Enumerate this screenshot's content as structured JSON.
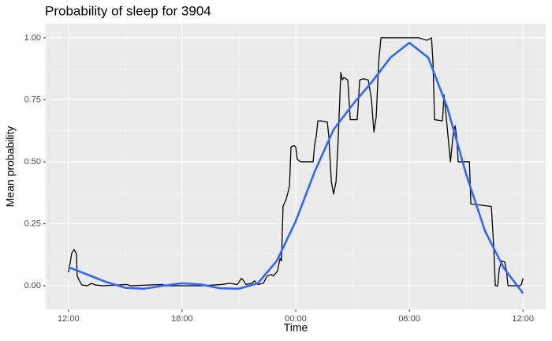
{
  "chart_data": {
    "type": "line",
    "title": "Probability of sleep for 3904",
    "x_label": "Time",
    "y_label": "Mean probability",
    "xlim": [
      -1.2,
      25.2
    ],
    "ylim": [
      -0.0955,
      1.057
    ],
    "xticks": [
      {
        "value": 0,
        "label": "12:00"
      },
      {
        "value": 6,
        "label": "18:00"
      },
      {
        "value": 12,
        "label": "00:00"
      },
      {
        "value": 18,
        "label": "06:00"
      },
      {
        "value": 24,
        "label": "12:00"
      }
    ],
    "yticks": [
      {
        "value": 0,
        "label": "0.00"
      },
      {
        "value": 0.25,
        "label": "0.25"
      },
      {
        "value": 0.5,
        "label": "0.50"
      },
      {
        "value": 0.75,
        "label": "0.75"
      },
      {
        "value": 1,
        "label": "1.00"
      }
    ],
    "x_minor": [
      3,
      9,
      15,
      21
    ],
    "y_minor": [
      0.125,
      0.375,
      0.625,
      0.875
    ],
    "grid": true,
    "series": [
      {
        "color": "#000000",
        "width": 1.3,
        "x": [
          0,
          0.04,
          0.17,
          0.29,
          0.42,
          0.46,
          0.58,
          0.71,
          1.0,
          1.21,
          1.42,
          1.83,
          3.08,
          3.29,
          4.96,
          5.17,
          7.04,
          8.08,
          8.5,
          8.92,
          9.13,
          9.25,
          9.38,
          9.67,
          9.83,
          10.0,
          10.29,
          10.5,
          10.71,
          10.83,
          11.04,
          11.17,
          11.25,
          11.33,
          11.5,
          11.67,
          11.75,
          11.92,
          12.0,
          12.08,
          12.25,
          12.92,
          13.0,
          13.08,
          13.17,
          13.33,
          13.67,
          13.75,
          13.88,
          14.0,
          14.13,
          14.25,
          14.38,
          14.46,
          14.54,
          14.75,
          14.88,
          15.25,
          15.38,
          15.58,
          15.83,
          16.0,
          16.13,
          16.25,
          16.38,
          16.5,
          18.5,
          18.92,
          19.17,
          19.25,
          19.33,
          19.75,
          19.83,
          19.96,
          20.17,
          20.33,
          20.42,
          20.5,
          20.58,
          21.17,
          21.25,
          22.33,
          22.46,
          22.54,
          22.67,
          22.75,
          22.88,
          23.04,
          23.13,
          23.21,
          23.83,
          23.92,
          24.0
        ],
        "values": [
          0.054,
          0.07,
          0.13,
          0.146,
          0.13,
          0.04,
          0.02,
          0.003,
          0,
          0.01,
          0.003,
          0,
          0.005,
          0,
          0.005,
          0,
          0,
          0.005,
          0.01,
          0.005,
          0.03,
          0.02,
          0.005,
          0.01,
          0.02,
          0.005,
          0.01,
          0.04,
          0.045,
          0.04,
          0.06,
          0.11,
          0.1,
          0.32,
          0.35,
          0.4,
          0.56,
          0.565,
          0.56,
          0.51,
          0.5,
          0.5,
          0.57,
          0.6,
          0.665,
          0.665,
          0.66,
          0.6,
          0.42,
          0.37,
          0.42,
          0.6,
          0.86,
          0.83,
          0.84,
          0.83,
          0.67,
          0.67,
          0.83,
          0.835,
          0.83,
          0.75,
          0.62,
          0.68,
          0.9,
          1.0,
          1.0,
          0.99,
          1.0,
          0.9,
          0.67,
          0.665,
          0.77,
          0.67,
          0.5,
          0.62,
          0.645,
          0.6,
          0.5,
          0.5,
          0.33,
          0.32,
          0.15,
          0,
          0,
          0.07,
          0.1,
          0.095,
          0.06,
          0,
          0,
          0.005,
          0.03
        ]
      },
      {
        "color": "#3366FF",
        "width": 2.6,
        "x": [
          0,
          1,
          2,
          3,
          4,
          5,
          6,
          7,
          8,
          9,
          10,
          11,
          12,
          13,
          14,
          15,
          16,
          17,
          18,
          19,
          20,
          21,
          22,
          23,
          24
        ],
        "values": [
          0.075,
          0.045,
          0.015,
          -0.008,
          -0.012,
          0.0,
          0.01,
          0.005,
          -0.01,
          -0.012,
          0.01,
          0.1,
          0.26,
          0.46,
          0.63,
          0.73,
          0.82,
          0.92,
          0.98,
          0.92,
          0.72,
          0.45,
          0.22,
          0.07,
          -0.03
        ]
      }
    ]
  }
}
